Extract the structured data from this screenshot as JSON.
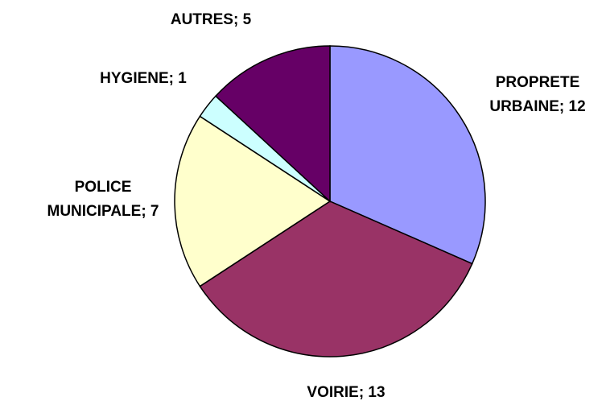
{
  "chart_data": {
    "type": "pie",
    "categories": [
      "PROPRETE URBAINE",
      "VOIRIE",
      "POLICE MUNICIPALE",
      "HYGIENE",
      "AUTRES"
    ],
    "values": [
      12,
      13,
      7,
      1,
      5
    ],
    "value_labels": [
      "PROPRETE\nURBAINE; 12",
      "VOIRIE; 13",
      "POLICE\nMUNICIPALE; 7",
      "HYGIENE; 1",
      "AUTRES; 5"
    ],
    "colors": [
      "#9999ff",
      "#993366",
      "#ffffcc",
      "#ccffff",
      "#660066"
    ]
  }
}
